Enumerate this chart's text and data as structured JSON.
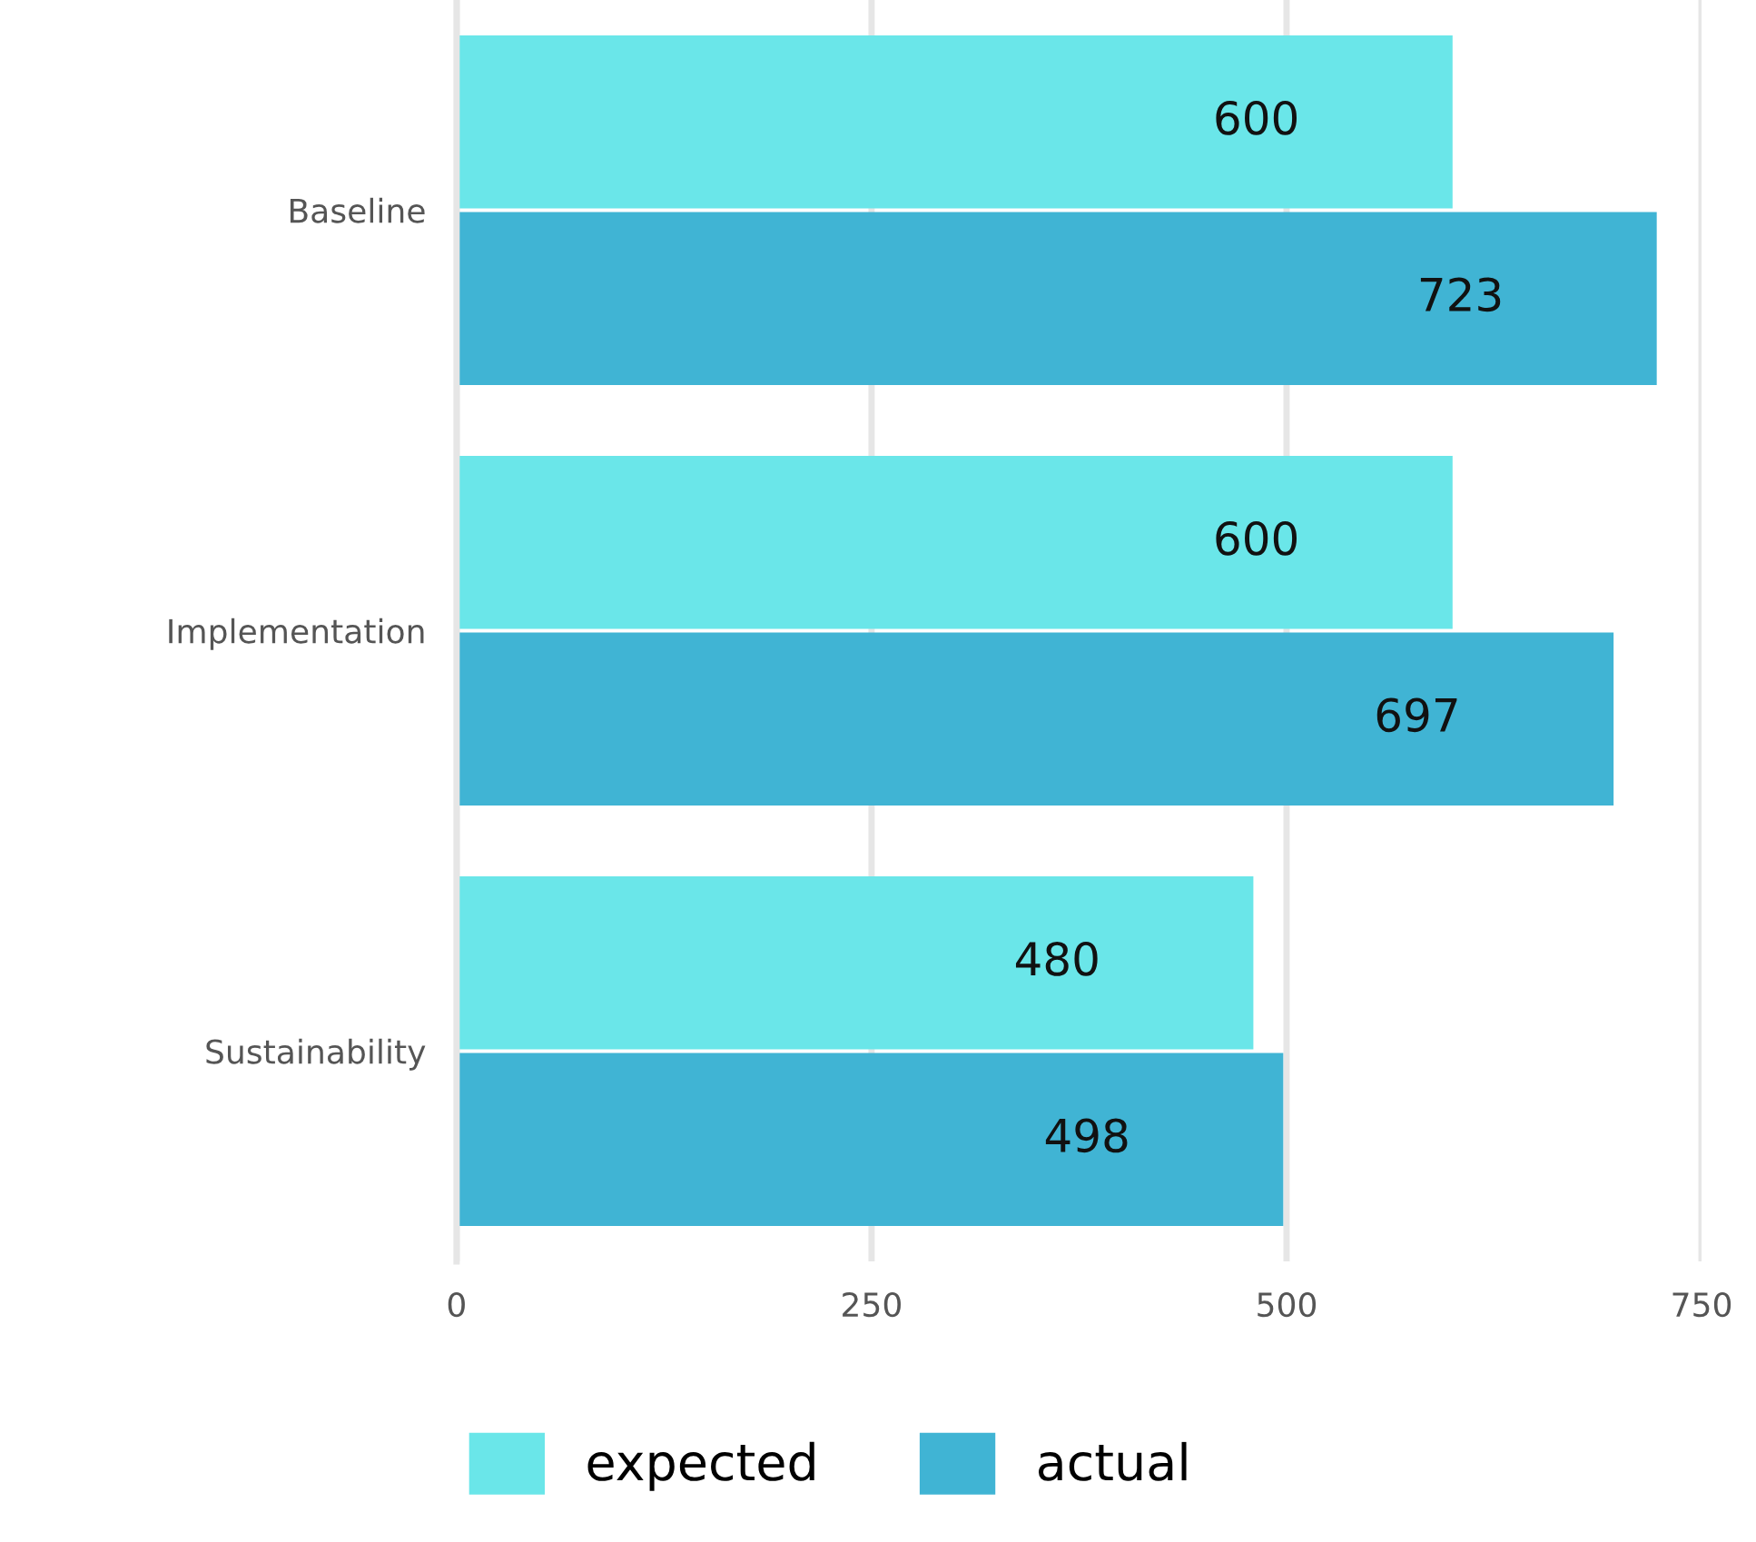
{
  "chart_data": {
    "type": "bar",
    "orientation": "horizontal",
    "categories": [
      "Baseline",
      "Implementation",
      "Sustainability"
    ],
    "series": [
      {
        "name": "expected",
        "color": "#6ae6e9",
        "values": [
          600,
          600,
          480
        ]
      },
      {
        "name": "actual",
        "color": "#40b4d4",
        "values": [
          723,
          697,
          498
        ]
      }
    ],
    "xlim": [
      0,
      750
    ],
    "xticks": [
      0,
      250,
      500,
      750
    ],
    "grid": "x",
    "legend": "bottom",
    "data_labels": true
  }
}
